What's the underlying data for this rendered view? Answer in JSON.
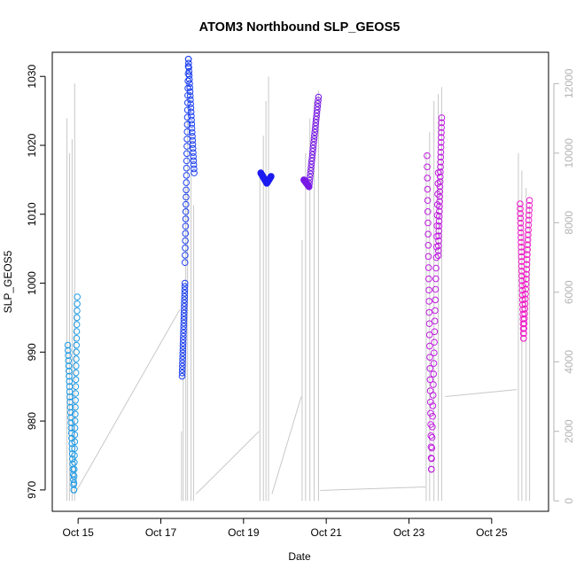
{
  "chart_data": {
    "type": "scatter",
    "title": "ATOM3 Northbound SLP_GEOS5",
    "xlabel": "Date",
    "ylabel": "SLP_GEOS5",
    "x_unit": "date",
    "x_range": [
      "2016-10-14T09:00",
      "2016-10-26T09:00"
    ],
    "x_ticks": [
      {
        "date": "2016-10-15",
        "label": "Oct 15"
      },
      {
        "date": "2016-10-17",
        "label": "Oct 17"
      },
      {
        "date": "2016-10-19",
        "label": "Oct 19"
      },
      {
        "date": "2016-10-21",
        "label": "Oct 21"
      },
      {
        "date": "2016-10-23",
        "label": "Oct 23"
      },
      {
        "date": "2016-10-25",
        "label": "Oct 25"
      }
    ],
    "ylim": [
      966.9,
      1033.5
    ],
    "y_ticks": [
      970,
      980,
      990,
      1000,
      1010,
      1020,
      1030
    ],
    "y2lim": [
      -300,
      12900
    ],
    "y2_ticks": [
      0,
      2000,
      4000,
      6000,
      8000,
      10000,
      12000
    ],
    "y2_label": "",
    "grid": false,
    "legend": "none",
    "marker": "open-circle",
    "colors": {
      "flight1": "#1e9be6",
      "flight2": "#1b3ff0",
      "flight3": "#1b1bf0",
      "flight4": "#7a1be6",
      "flight5": "#c01be0",
      "flight6": "#f01ec8",
      "altitude_line": "#c8c8c8",
      "axis": "#000000",
      "right_axis": "#b3b3b3"
    },
    "series": [
      {
        "color_key": "flight1",
        "segments": [
          {
            "x": [
              "2016-10-14T18:00",
              "2016-10-14T21:30"
            ],
            "y": [
              991,
              970
            ]
          },
          {
            "x": [
              "2016-10-14T21:30",
              "2016-10-14T23:30"
            ],
            "y": [
              970,
              998
            ]
          }
        ]
      },
      {
        "color_key": "flight2",
        "segments": [
          {
            "x": [
              "2016-10-17T12:20",
              "2016-10-17T14:00"
            ],
            "y": [
              986.5,
              1000
            ]
          },
          {
            "x": [
              "2016-10-17T14:00",
              "2016-10-17T16:00"
            ],
            "y": [
              1003,
              1032.5
            ]
          },
          {
            "x": [
              "2016-10-17T16:00",
              "2016-10-17T19:20"
            ],
            "y": [
              1032.5,
              1016
            ]
          }
        ]
      },
      {
        "color_key": "flight3",
        "segments": [
          {
            "x": [
              "2016-10-19T10:00",
              "2016-10-19T13:30"
            ],
            "y": [
              1016,
              1014.5
            ]
          },
          {
            "x": [
              "2016-10-19T13:30",
              "2016-10-19T16:00"
            ],
            "y": [
              1014.5,
              1015.5
            ]
          }
        ]
      },
      {
        "color_key": "flight4",
        "segments": [
          {
            "x": [
              "2016-10-20T11:00",
              "2016-10-20T14:00"
            ],
            "y": [
              1015,
              1014
            ]
          },
          {
            "x": [
              "2016-10-20T14:00",
              "2016-10-20T19:30"
            ],
            "y": [
              1014,
              1027
            ]
          }
        ]
      },
      {
        "color_key": "flight5",
        "segments": [
          {
            "x": [
              "2016-10-23T10:30",
              "2016-10-23T13:00"
            ],
            "y": [
              1018.5,
              973
            ]
          },
          {
            "x": [
              "2016-10-23T13:00",
              "2016-10-23T17:00"
            ],
            "y": [
              973,
              1016
            ]
          },
          {
            "x": [
              "2016-10-23T17:00",
              "2016-10-23T19:00"
            ],
            "y": [
              1004,
              1024
            ]
          }
        ]
      },
      {
        "color_key": "flight6",
        "segments": [
          {
            "x": [
              "2016-10-25T16:30",
              "2016-10-25T18:30"
            ],
            "y": [
              1011.5,
              992
            ]
          },
          {
            "x": [
              "2016-10-25T18:30",
              "2016-10-25T22:00"
            ],
            "y": [
              992,
              1012
            ]
          }
        ]
      }
    ],
    "altitude_track_note": "",
    "altitude_spikes": [
      [
        "2016-10-14T17:30",
        11000
      ],
      [
        "2016-10-14T19:00",
        10000
      ],
      [
        "2016-10-14T20:30",
        10400
      ],
      [
        "2016-10-14T22:00",
        12000
      ],
      [
        "2016-10-17T12:00",
        2000
      ],
      [
        "2016-10-17T13:00",
        4500
      ],
      [
        "2016-10-17T14:30",
        9000
      ],
      [
        "2016-10-17T15:30",
        11000
      ],
      [
        "2016-10-17T17:30",
        10500
      ],
      [
        "2016-10-17T19:00",
        8500
      ],
      [
        "2016-10-19T09:30",
        9500
      ],
      [
        "2016-10-19T11:30",
        10500
      ],
      [
        "2016-10-19T13:00",
        11500
      ],
      [
        "2016-10-19T14:30",
        12200
      ],
      [
        "2016-10-20T10:00",
        7500
      ],
      [
        "2016-10-20T12:00",
        10000
      ],
      [
        "2016-10-20T14:30",
        11000
      ],
      [
        "2016-10-20T17:00",
        11500
      ],
      [
        "2016-10-20T19:30",
        11800
      ],
      [
        "2016-10-23T10:00",
        10000
      ],
      [
        "2016-10-23T12:00",
        10600
      ],
      [
        "2016-10-23T14:30",
        11500
      ],
      [
        "2016-10-23T17:00",
        11700
      ],
      [
        "2016-10-23T19:00",
        11900
      ],
      [
        "2016-10-25T15:30",
        10000
      ],
      [
        "2016-10-25T17:30",
        9500
      ],
      [
        "2016-10-25T20:00",
        9000
      ],
      [
        "2016-10-25T22:00",
        8500
      ]
    ],
    "altitude_connectors": [
      [
        "2016-10-14T22:00",
        200
      ],
      [
        "2016-10-17T11:00",
        5500
      ],
      [
        "2016-10-17T20:30",
        200
      ],
      [
        "2016-10-19T09:00",
        2000
      ],
      [
        "2016-10-19T16:30",
        200
      ],
      [
        "2016-10-20T09:30",
        3000
      ],
      [
        "2016-10-20T20:30",
        300
      ],
      [
        "2016-10-23T09:30",
        400
      ],
      [
        "2016-10-23T21:00",
        3000
      ],
      [
        "2016-10-25T14:30",
        3200
      ]
    ]
  }
}
